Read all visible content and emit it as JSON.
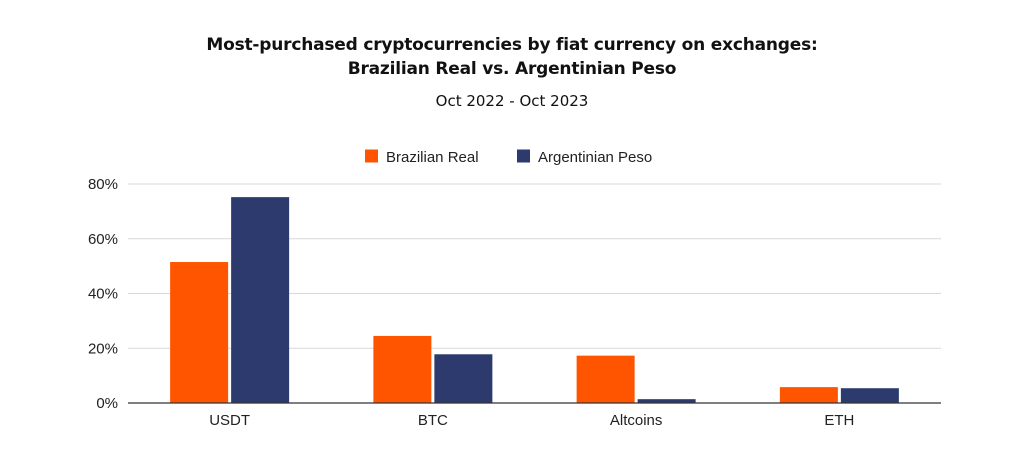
{
  "title_line1": "Most-purchased cryptocurrencies by fiat currency on exchanges:",
  "title_line2": "Brazilian Real vs. Argentinian Peso",
  "subtitle": "Oct 2022 - Oct 2023",
  "chart_data": {
    "type": "bar",
    "title": "Most-purchased cryptocurrencies by fiat currency on exchanges: Brazilian Real vs. Argentinian Peso",
    "subtitle": "Oct 2022 - Oct 2023",
    "xlabel": "",
    "ylabel": "",
    "categories": [
      "USDT",
      "BTC",
      "Altcoins",
      "ETH"
    ],
    "series": [
      {
        "name": "Brazilian Real",
        "color": "#ff5500",
        "values": [
          51.5,
          24.5,
          17.3,
          5.8
        ]
      },
      {
        "name": "Argentinian Peso",
        "color": "#2d3a6e",
        "values": [
          75.2,
          17.8,
          1.4,
          5.4
        ]
      }
    ],
    "ylim": [
      0,
      80
    ],
    "yticks": [
      0,
      20,
      40,
      60,
      80
    ],
    "ytick_labels": [
      "0%",
      "20%",
      "40%",
      "60%",
      "80%"
    ],
    "grid": true,
    "legend_position": "top-center"
  }
}
